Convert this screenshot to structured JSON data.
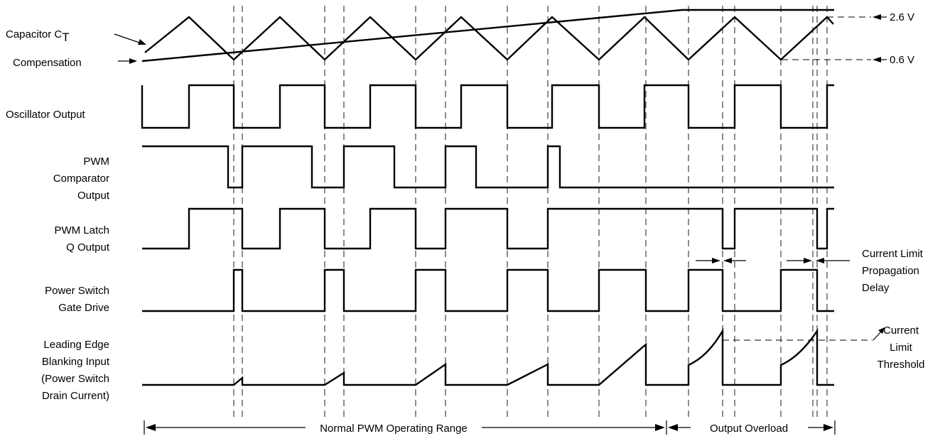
{
  "signals": [
    {
      "id": "ct",
      "label_lines": [
        "Capacitor C",
        "T"
      ]
    },
    {
      "id": "comp",
      "label_lines": [
        "Compensation"
      ]
    },
    {
      "id": "osc",
      "label_lines": [
        "Oscillator Output"
      ]
    },
    {
      "id": "pwmc",
      "label_lines": [
        "PWM",
        "Comparator",
        "Output"
      ]
    },
    {
      "id": "latch",
      "label_lines": [
        "PWM Latch",
        "Q Output"
      ]
    },
    {
      "id": "gate",
      "label_lines": [
        "Power Switch",
        "Gate Drive"
      ]
    },
    {
      "id": "leb",
      "label_lines": [
        "Leading Edge",
        "Blanking Input",
        "(Power Switch",
        "Drain Current)"
      ]
    }
  ],
  "voltage_levels": {
    "high": "2.6 V",
    "low": "0.6 V"
  },
  "annotations": {
    "propagation_delay": [
      "Current Limit",
      "Propagation",
      "Delay"
    ],
    "threshold": [
      "Current",
      "Limit",
      "Threshold"
    ]
  },
  "ranges": {
    "normal": "Normal PWM Operating Range",
    "overload": "Output Overload"
  }
}
